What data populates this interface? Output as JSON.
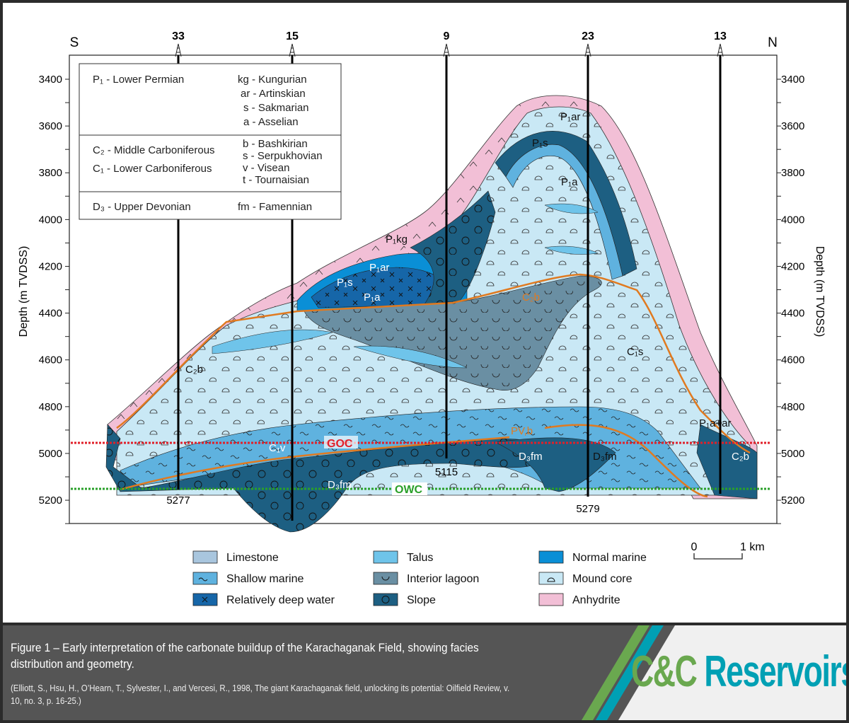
{
  "compass": {
    "south": "S",
    "north": "N"
  },
  "wells": [
    {
      "name": "33",
      "td": "5277"
    },
    {
      "name": "15",
      "td": ""
    },
    {
      "name": "9",
      "td": "5115"
    },
    {
      "name": "23",
      "td": "5279"
    },
    {
      "name": "13",
      "td": ""
    }
  ],
  "axis": {
    "left_label": "Depth (m TVDSS)",
    "right_label": "Depth (m TVDSS)",
    "ticks": [
      "3400",
      "3600",
      "3800",
      "4000",
      "4200",
      "4400",
      "4600",
      "4800",
      "5000",
      "5200"
    ]
  },
  "stratigraphy_key": {
    "rows": [
      {
        "system": [
          "P₁ - Lower Permian"
        ],
        "stages": [
          "kg - Kungurian",
          "ar - Artinskian",
          "s - Sakmarian",
          "a - Asselian"
        ]
      },
      {
        "system": [
          "C₂ - Middle Carboniferous",
          "C₁ - Lower Carboniferous"
        ],
        "stages": [
          "b - Bashkirian",
          "s - Serpukhovian",
          "v - Visean",
          "t - Tournaisian"
        ]
      },
      {
        "system": [
          "D₃ - Upper Devonian"
        ],
        "stages": [
          "fm - Famennian"
        ]
      }
    ]
  },
  "unit_labels": {
    "p1ar_top": "P₁ar",
    "p1s_top": "P₁s",
    "p1a_top": "P₁a",
    "p1kg": "P₁kg",
    "p1ar_flank": "P₁ar",
    "p1s_flank": "P₁s",
    "p1a_flank": "P₁a",
    "c2b_left": "C₂b",
    "c2b_center": "C₂b",
    "c1s": "C₁s",
    "c1v": "C₁v",
    "pvb": "PV,b",
    "p1a_ar": "P₁a+ar",
    "c2b_right": "C₂b",
    "d3fm_left": "D₃fm",
    "d3fm_mid": "D₃fm",
    "d3fm_right": "D₃fm"
  },
  "contacts": {
    "goc": "GOC",
    "owc": "OWC"
  },
  "legend": [
    {
      "label": "Limestone",
      "color": "#a9c6de",
      "pattern": "none"
    },
    {
      "label": "Talus",
      "color": "#6fc4ea",
      "pattern": "none"
    },
    {
      "label": "Normal marine",
      "color": "#0a8fd6",
      "pattern": "none"
    },
    {
      "label": "Shallow marine",
      "color": "#5fb2df",
      "pattern": "tilde"
    },
    {
      "label": "Interior lagoon",
      "color": "#6a8fa3",
      "pattern": "cup"
    },
    {
      "label": "Mound core",
      "color": "#c9e8f5",
      "pattern": "dome"
    },
    {
      "label": "Relatively deep water",
      "color": "#1666a8",
      "pattern": "cross"
    },
    {
      "label": "Slope",
      "color": "#1d5f82",
      "pattern": "circle"
    },
    {
      "label": "Anhydrite",
      "color": "#f2bfd6",
      "pattern": "none"
    }
  ],
  "scale_bar": {
    "start": "0",
    "end": "1 km"
  },
  "colors": {
    "goc": "#e0202a",
    "owc": "#2aa02a",
    "contact_line": "#e07a20",
    "caption_bg": "#555555",
    "logo_green": "#6aa84f",
    "logo_teal": "#00a0b4"
  },
  "caption": {
    "title": "Figure 1 – Early interpretation of the carbonate buildup of the Karachaganak Field, showing facies distribution and geometry.",
    "reference": "(Elliott, S., Hsu, H., O’Hearn, T., Sylvester, I., and Vercesi, R., 1998, The giant Karachaganak field, unlocking its potential: Oilfield Review, v. 10, no. 3, p. 16-25.)"
  },
  "logo": {
    "part1": "C&C",
    "part2": " Reservoirs"
  }
}
